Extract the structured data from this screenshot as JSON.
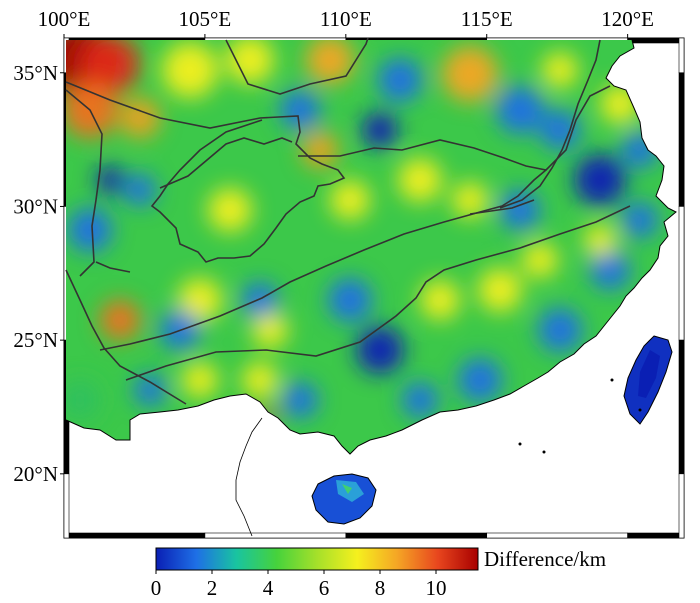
{
  "map": {
    "lon_ticks": [
      "100°E",
      "105°E",
      "110°E",
      "115°E",
      "120°E"
    ],
    "lat_ticks": [
      "35°N",
      "30°N",
      "25°N",
      "20°N"
    ],
    "lon_range": [
      100,
      122
    ],
    "lat_range": [
      17.6,
      36.3
    ],
    "tick_lons": [
      100,
      105,
      110,
      115,
      120
    ],
    "tick_lats": [
      35,
      30,
      25,
      20
    ]
  },
  "colorbar": {
    "label": "Difference/km",
    "ticks": [
      "0",
      "2",
      "4",
      "6",
      "8",
      "10"
    ],
    "tick_values": [
      0,
      2,
      4,
      6,
      8,
      10
    ],
    "range": [
      0,
      11.5
    ],
    "colors": [
      "#0a1fb4",
      "#1e6fe6",
      "#19c4a0",
      "#46d23c",
      "#a5e02a",
      "#f5f01e",
      "#f5a525",
      "#e8461e",
      "#a80000"
    ]
  }
}
